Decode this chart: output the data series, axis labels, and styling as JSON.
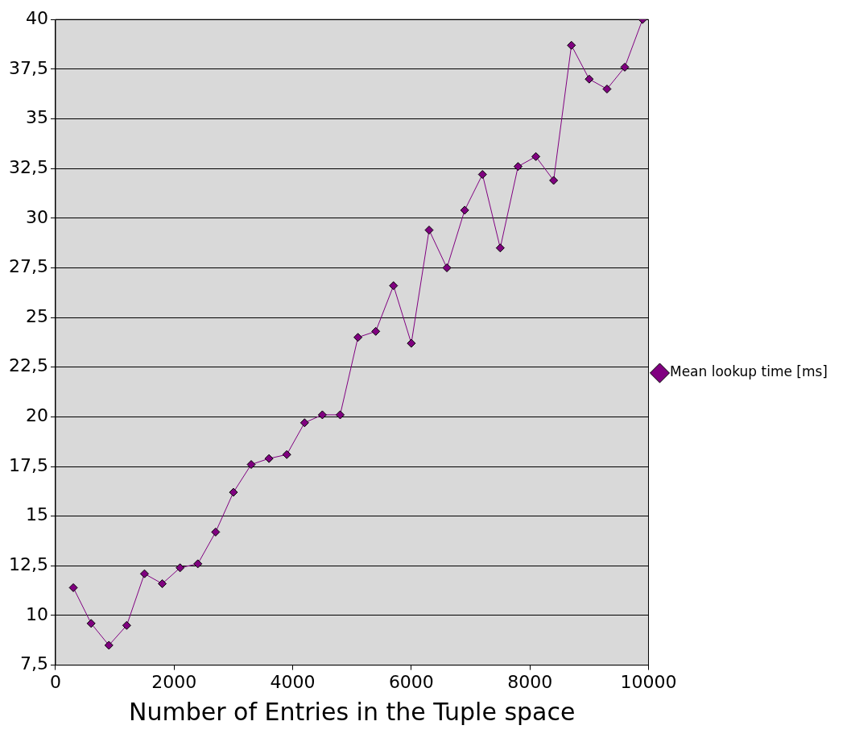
{
  "chart_data": {
    "type": "line",
    "xlabel": "Number of Entries in the Tuple space",
    "x": [
      300,
      600,
      900,
      1200,
      1500,
      1800,
      2100,
      2400,
      2700,
      3000,
      3300,
      3600,
      3900,
      4200,
      4500,
      4800,
      5100,
      5400,
      5700,
      6000,
      6300,
      6600,
      6900,
      7200,
      7500,
      7800,
      8100,
      8400,
      8700,
      9000,
      9300,
      9600,
      9900
    ],
    "series": [
      {
        "name": "Mean lookup time [ms]",
        "color": "#800080",
        "values": [
          11.4,
          9.6,
          8.5,
          9.5,
          12.1,
          11.6,
          12.4,
          12.6,
          14.2,
          16.2,
          17.6,
          17.9,
          18.1,
          19.7,
          20.1,
          20.1,
          24.0,
          24.3,
          26.6,
          23.7,
          29.4,
          27.5,
          30.4,
          32.2,
          28.5,
          32.6,
          33.1,
          31.9,
          38.7,
          37.0,
          36.5,
          37.6,
          40.0
        ]
      }
    ],
    "xlim": [
      0,
      10000
    ],
    "xticks": [
      0,
      2000,
      4000,
      6000,
      8000,
      10000
    ],
    "ylim": [
      7.5,
      40
    ],
    "yticks": [
      {
        "value": 7.5,
        "label": "7,5"
      },
      10,
      {
        "value": 12.5,
        "label": "12,5"
      },
      15,
      {
        "value": 17.5,
        "label": "17,5"
      },
      20,
      {
        "value": 22.5,
        "label": "22,5"
      },
      25,
      {
        "value": 27.5,
        "label": "27,5"
      },
      30,
      {
        "value": 32.5,
        "label": "32,5"
      },
      35,
      {
        "value": 37.5,
        "label": "37,5"
      },
      40
    ],
    "grid": "y",
    "legend": "right",
    "marker": "diamond",
    "line_style": "solid"
  }
}
